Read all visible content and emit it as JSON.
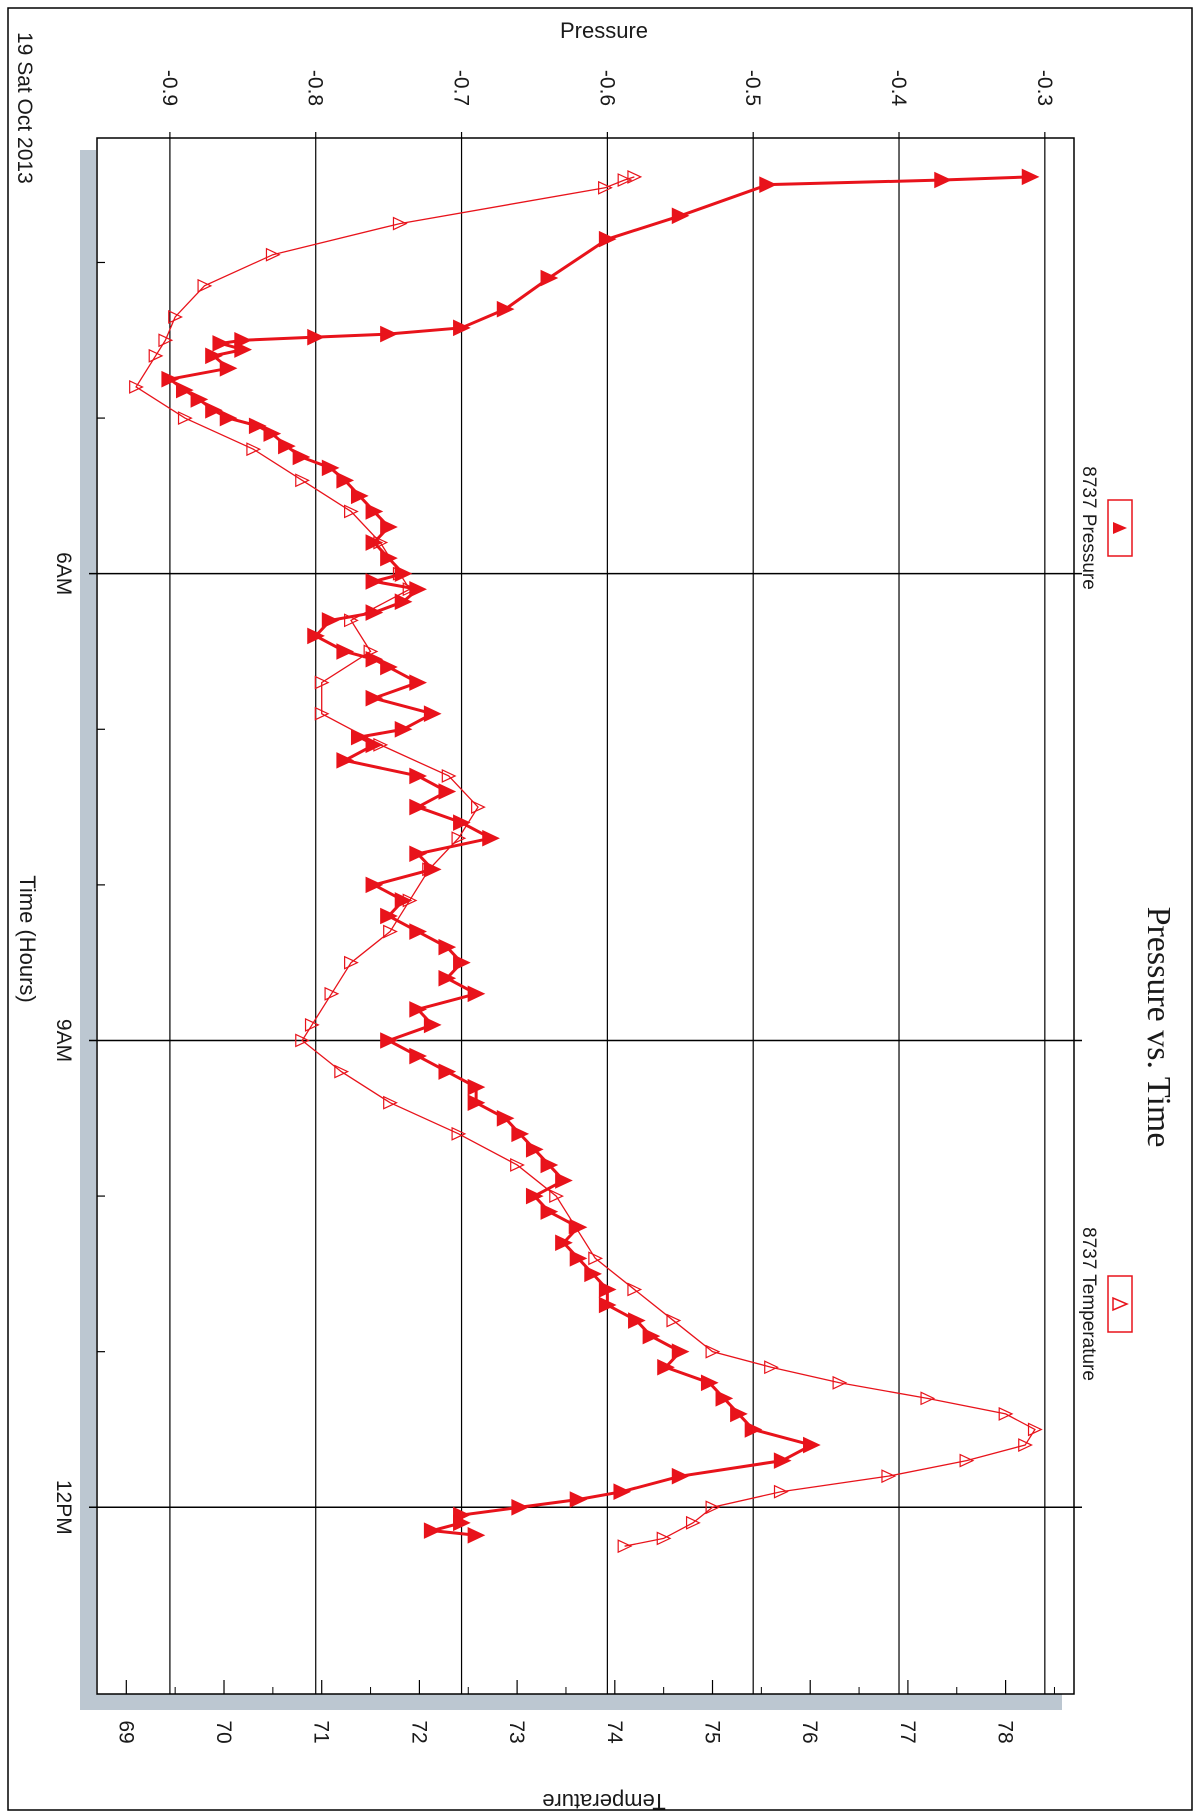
{
  "chart_data": {
    "type": "line",
    "title": "Pressure vs. Time",
    "date_label": "19 Sat Oct 2013",
    "xlabel": "Time (Hours)",
    "ylabel_left": "Pressure",
    "ylabel_right": "Temperature",
    "x_unit": "hours",
    "xlim": [
      3.2,
      13.2
    ],
    "x_ticks": [
      {
        "value": 6,
        "label": "6AM"
      },
      {
        "value": 9,
        "label": "9AM"
      },
      {
        "value": 12,
        "label": "12PM"
      }
    ],
    "x_minor_ticks": [
      4.0,
      5.0,
      7.0,
      8.0,
      10.0,
      11.0
    ],
    "pressure_axis": {
      "lim": [
        -0.95,
        -0.28
      ],
      "ticks": [
        -0.9,
        -0.8,
        -0.7,
        -0.6,
        -0.5,
        -0.4,
        -0.3
      ],
      "tick_labels": [
        "-0.9",
        "-0.8",
        "-0.7",
        "-0.6",
        "-0.5",
        "-0.4",
        "-0.3"
      ]
    },
    "temperature_axis": {
      "lim": [
        68.7,
        78.7
      ],
      "ticks": [
        69,
        70,
        71,
        72,
        73,
        74,
        75,
        76,
        77,
        78
      ],
      "tick_labels": [
        "69",
        "70",
        "71",
        "72",
        "73",
        "74",
        "75",
        "76",
        "77",
        "78"
      ]
    },
    "grid": true,
    "legend_position": "top",
    "series": [
      {
        "name": "8737 Pressure",
        "axis": "pressure",
        "marker": "filled-triangle",
        "color": "#e8131b",
        "x": [
          3.45,
          3.47,
          3.5,
          3.7,
          3.85,
          4.1,
          4.3,
          4.42,
          4.46,
          4.48,
          4.5,
          4.52,
          4.56,
          4.6,
          4.68,
          4.75,
          4.82,
          4.88,
          4.95,
          5.0,
          5.05,
          5.1,
          5.18,
          5.25,
          5.32,
          5.4,
          5.5,
          5.6,
          5.7,
          5.8,
          5.9,
          6.0,
          6.05,
          6.1,
          6.18,
          6.25,
          6.3,
          6.4,
          6.5,
          6.55,
          6.6,
          6.7,
          6.8,
          6.9,
          7.0,
          7.05,
          7.1,
          7.2,
          7.3,
          7.4,
          7.5,
          7.6,
          7.7,
          7.8,
          7.9,
          8.0,
          8.1,
          8.2,
          8.3,
          8.4,
          8.5,
          8.6,
          8.7,
          8.8,
          8.9,
          9.0,
          9.1,
          9.2,
          9.3,
          9.4,
          9.5,
          9.6,
          9.7,
          9.8,
          9.9,
          10.0,
          10.1,
          10.2,
          10.3,
          10.4,
          10.5,
          10.6,
          10.7,
          10.8,
          10.9,
          11.0,
          11.1,
          11.2,
          11.3,
          11.4,
          11.5,
          11.6,
          11.7,
          11.8,
          11.9,
          11.95,
          12.0,
          12.05,
          12.1,
          12.15,
          12.18
        ],
        "y": [
          -0.31,
          -0.37,
          -0.49,
          -0.55,
          -0.6,
          -0.64,
          -0.67,
          -0.7,
          -0.75,
          -0.8,
          -0.85,
          -0.865,
          -0.85,
          -0.87,
          -0.86,
          -0.9,
          -0.89,
          -0.88,
          -0.87,
          -0.86,
          -0.84,
          -0.83,
          -0.82,
          -0.81,
          -0.79,
          -0.78,
          -0.77,
          -0.76,
          -0.75,
          -0.76,
          -0.75,
          -0.74,
          -0.76,
          -0.73,
          -0.74,
          -0.76,
          -0.79,
          -0.8,
          -0.78,
          -0.76,
          -0.75,
          -0.73,
          -0.76,
          -0.72,
          -0.74,
          -0.77,
          -0.76,
          -0.78,
          -0.73,
          -0.71,
          -0.73,
          -0.7,
          -0.68,
          -0.73,
          -0.72,
          -0.76,
          -0.74,
          -0.75,
          -0.73,
          -0.71,
          -0.7,
          -0.71,
          -0.69,
          -0.73,
          -0.72,
          -0.75,
          -0.73,
          -0.71,
          -0.69,
          -0.69,
          -0.67,
          -0.66,
          -0.65,
          -0.64,
          -0.63,
          -0.65,
          -0.64,
          -0.62,
          -0.63,
          -0.62,
          -0.61,
          -0.6,
          -0.6,
          -0.58,
          -0.57,
          -0.55,
          -0.56,
          -0.53,
          -0.52,
          -0.51,
          -0.5,
          -0.46,
          -0.48,
          -0.55,
          -0.59,
          -0.62,
          -0.66,
          -0.7,
          -0.7,
          -0.72,
          -0.69
        ]
      },
      {
        "name": "8737 Temperature",
        "axis": "temperature",
        "marker": "open-triangle",
        "color": "#e8131b",
        "x": [
          3.45,
          3.47,
          3.52,
          3.75,
          3.95,
          4.15,
          4.35,
          4.5,
          4.6,
          4.8,
          5.0,
          5.2,
          5.4,
          5.6,
          5.8,
          6.0,
          6.1,
          6.3,
          6.5,
          6.7,
          6.9,
          7.1,
          7.3,
          7.5,
          7.7,
          7.9,
          8.1,
          8.3,
          8.5,
          8.7,
          8.9,
          9.0,
          9.2,
          9.4,
          9.6,
          9.8,
          10.0,
          10.2,
          10.4,
          10.6,
          10.8,
          11.0,
          11.1,
          11.2,
          11.3,
          11.4,
          11.5,
          11.6,
          11.7,
          11.8,
          11.9,
          12.0,
          12.1,
          12.2,
          12.25
        ],
        "y": [
          74.2,
          74.1,
          73.9,
          71.8,
          70.5,
          69.8,
          69.5,
          69.4,
          69.3,
          69.1,
          69.6,
          70.3,
          70.8,
          71.3,
          71.6,
          71.8,
          71.9,
          71.3,
          71.5,
          71.0,
          71.0,
          71.6,
          72.3,
          72.6,
          72.4,
          72.1,
          71.9,
          71.7,
          71.3,
          71.1,
          70.9,
          70.8,
          71.2,
          71.7,
          72.4,
          73.0,
          73.4,
          73.6,
          73.8,
          74.2,
          74.6,
          75.0,
          75.6,
          76.3,
          77.2,
          78.0,
          78.3,
          78.2,
          77.6,
          76.8,
          75.7,
          75.0,
          74.8,
          74.5,
          74.1
        ]
      }
    ]
  }
}
